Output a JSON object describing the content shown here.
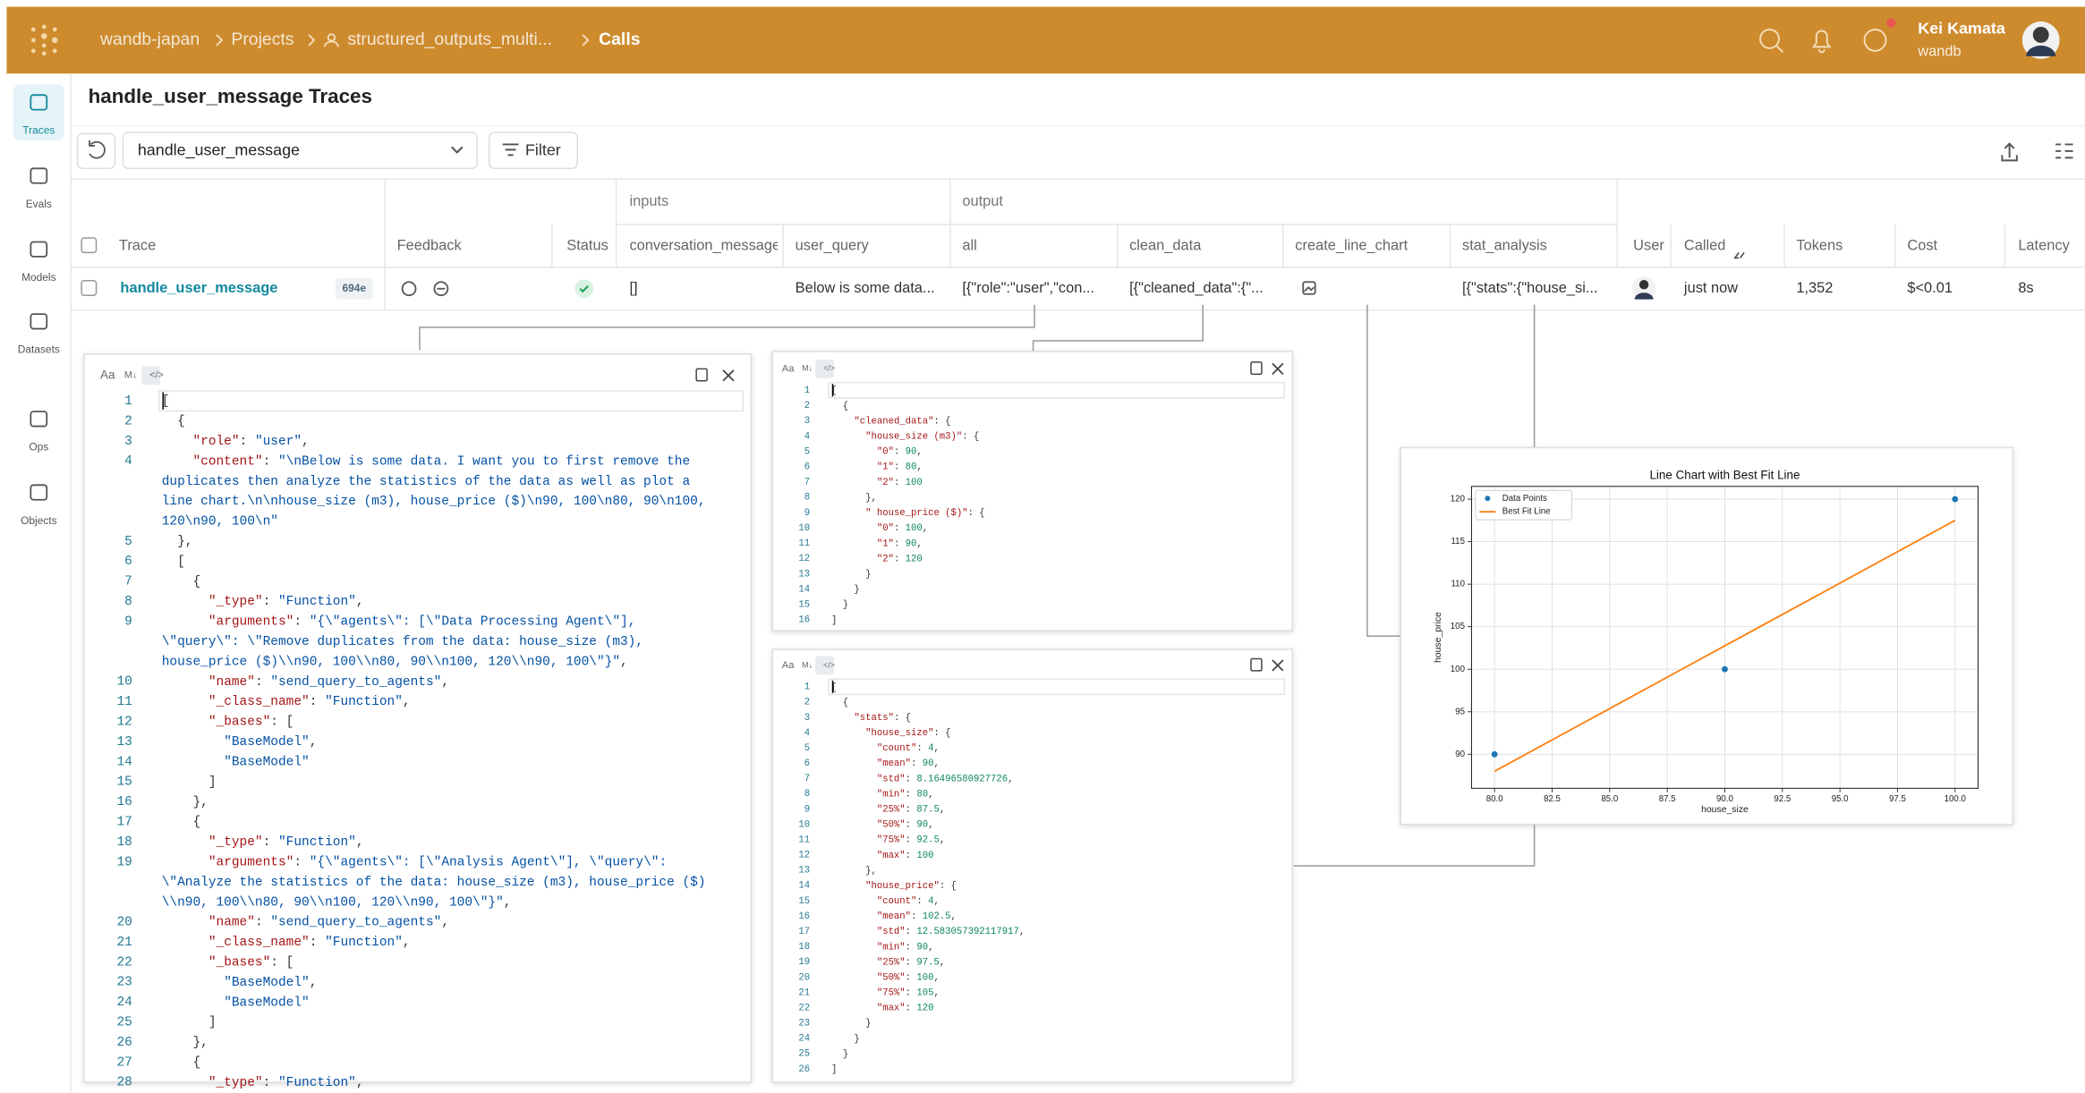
{
  "topbar": {
    "breadcrumb": [
      "wandb-japan",
      "Projects",
      "structured_outputs_multi...",
      "Calls"
    ],
    "user_name": "Kei Kamata",
    "user_org": "wandb"
  },
  "sidebar": [
    "Traces",
    "Evals",
    "Models",
    "Datasets",
    "Ops",
    "Objects"
  ],
  "page_title": "handle_user_message Traces",
  "toolbar": {
    "op_select": "handle_user_message",
    "filter": "Filter"
  },
  "table": {
    "groups": [
      "inputs",
      "output"
    ],
    "columns": [
      "Trace",
      "Feedback",
      "Status",
      "conversation_message",
      "user_query",
      "all",
      "clean_data",
      "create_line_chart",
      "stat_analysis",
      "User",
      "Called",
      "Tokens",
      "Cost",
      "Latency"
    ],
    "row": {
      "trace": "handle_user_message",
      "trace_id": "694e",
      "conversation_message": "[]",
      "user_query": "Below is some data...",
      "all": "[{\"role\":\"user\",\"con...",
      "clean_data": "[{\"cleaned_data\":{\"...",
      "stat_analysis": "[{\"stats\":{\"house_si...",
      "called": "just now",
      "tokens": "1,352",
      "cost": "$<0.01",
      "latency": "8s"
    }
  },
  "panel_toolbar": [
    "Aa",
    "M↓",
    "</>"
  ],
  "panels": [
    {
      "rows": [
        [
          1,
          "["
        ],
        [
          2,
          "  {"
        ],
        [
          3,
          "    \"role\": \"user\","
        ],
        [
          4,
          "    \"content\": \"\\nBelow is some data. I want you to first remove the"
        ],
        [
          null,
          "duplicates then analyze the statistics of the data as well as plot a"
        ],
        [
          null,
          "line chart.\\n\\nhouse_size (m3), house_price ($)\\n90, 100\\n80, 90\\n100,"
        ],
        [
          null,
          "120\\n90, 100\\n\""
        ],
        [
          5,
          "  },"
        ],
        [
          6,
          "  ["
        ],
        [
          7,
          "    {"
        ],
        [
          8,
          "      \"_type\": \"Function\","
        ],
        [
          9,
          "      \"arguments\": \"{\\\"agents\\\": [\\\"Data Processing Agent\\\"],"
        ],
        [
          null,
          "\\\"query\\\": \\\"Remove duplicates from the data: house_size (m3),"
        ],
        [
          null,
          "house_price ($)\\\\n90, 100\\\\n80, 90\\\\n100, 120\\\\n90, 100\\\"}\","
        ],
        [
          10,
          "      \"name\": \"send_query_to_agents\","
        ],
        [
          11,
          "      \"_class_name\": \"Function\","
        ],
        [
          12,
          "      \"_bases\": ["
        ],
        [
          13,
          "        \"BaseModel\","
        ],
        [
          14,
          "        \"BaseModel\""
        ],
        [
          15,
          "      ]"
        ],
        [
          16,
          "    },"
        ],
        [
          17,
          "    {"
        ],
        [
          18,
          "      \"_type\": \"Function\","
        ],
        [
          19,
          "      \"arguments\": \"{\\\"agents\\\": [\\\"Analysis Agent\\\"], \\\"query\\\":"
        ],
        [
          null,
          "\\\"Analyze the statistics of the data: house_size (m3), house_price ($)"
        ],
        [
          null,
          "\\\\n90, 100\\\\n80, 90\\\\n100, 120\\\\n90, 100\\\"}\","
        ],
        [
          20,
          "      \"name\": \"send_query_to_agents\","
        ],
        [
          21,
          "      \"_class_name\": \"Function\","
        ],
        [
          22,
          "      \"_bases\": ["
        ],
        [
          23,
          "        \"BaseModel\","
        ],
        [
          24,
          "        \"BaseModel\""
        ],
        [
          25,
          "      ]"
        ],
        [
          26,
          "    },"
        ],
        [
          27,
          "    {"
        ],
        [
          28,
          "      \"_type\": \"Function\","
        ]
      ]
    },
    {
      "rows": [
        [
          1,
          "["
        ],
        [
          2,
          "  {"
        ],
        [
          3,
          "    \"cleaned_data\": {"
        ],
        [
          4,
          "      \"house_size (m3)\": {"
        ],
        [
          5,
          "        \"0\": 90,"
        ],
        [
          6,
          "        \"1\": 80,"
        ],
        [
          7,
          "        \"2\": 100"
        ],
        [
          8,
          "      },"
        ],
        [
          9,
          "      \" house_price ($)\": {"
        ],
        [
          10,
          "        \"0\": 100,"
        ],
        [
          11,
          "        \"1\": 90,"
        ],
        [
          12,
          "        \"2\": 120"
        ],
        [
          13,
          "      }"
        ],
        [
          14,
          "    }"
        ],
        [
          15,
          "  }"
        ],
        [
          16,
          "]"
        ]
      ]
    },
    {
      "rows": [
        [
          1,
          "["
        ],
        [
          2,
          "  {"
        ],
        [
          3,
          "    \"stats\": {"
        ],
        [
          4,
          "      \"house_size\": {"
        ],
        [
          5,
          "        \"count\": 4,"
        ],
        [
          6,
          "        \"mean\": 90,"
        ],
        [
          7,
          "        \"std\": 8.16496580927726,"
        ],
        [
          8,
          "        \"min\": 80,"
        ],
        [
          9,
          "        \"25%\": 87.5,"
        ],
        [
          10,
          "        \"50%\": 90,"
        ],
        [
          11,
          "        \"75%\": 92.5,"
        ],
        [
          12,
          "        \"max\": 100"
        ],
        [
          13,
          "      },"
        ],
        [
          14,
          "      \"house_price\": {"
        ],
        [
          15,
          "        \"count\": 4,"
        ],
        [
          16,
          "        \"mean\": 102.5,"
        ],
        [
          17,
          "        \"std\": 12.583057392117917,"
        ],
        [
          18,
          "        \"min\": 90,"
        ],
        [
          19,
          "        \"25%\": 97.5,"
        ],
        [
          20,
          "        \"50%\": 100,"
        ],
        [
          21,
          "        \"75%\": 105,"
        ],
        [
          22,
          "        \"max\": 120"
        ],
        [
          23,
          "      }"
        ],
        [
          24,
          "    }"
        ],
        [
          25,
          "  }"
        ],
        [
          26,
          "]"
        ]
      ]
    }
  ],
  "chart_data": {
    "type": "line",
    "title": "Line Chart with Best Fit Line",
    "x_label": "house_size",
    "y_label": "house_price",
    "series": [
      {
        "name": "Data Points",
        "type": "scatter",
        "color": "#1f77b4",
        "x": [
          80,
          90,
          100
        ],
        "values": [
          90,
          100,
          120
        ]
      },
      {
        "name": "Best Fit Line",
        "type": "line",
        "color": "#ff7f0e",
        "x": [
          80,
          100
        ],
        "values": [
          88,
          117.5
        ]
      }
    ],
    "xlim": [
      79,
      101
    ],
    "ylim": [
      86,
      121.5
    ],
    "xticks": [
      {
        "value": 80,
        "label": "80.0"
      },
      {
        "value": 82.5,
        "label": "82.5"
      },
      {
        "value": 85,
        "label": "85.0"
      },
      {
        "value": 87.5,
        "label": "87.5"
      },
      {
        "value": 90,
        "label": "90.0"
      },
      {
        "value": 92.5,
        "label": "92.5"
      },
      {
        "value": 95,
        "label": "95.0"
      },
      {
        "value": 97.5,
        "label": "97.5"
      },
      {
        "value": 100,
        "label": "100.0"
      }
    ],
    "yticks": [
      90,
      95,
      100,
      105,
      110,
      115,
      120
    ],
    "grid": true,
    "legend": "upper left"
  }
}
